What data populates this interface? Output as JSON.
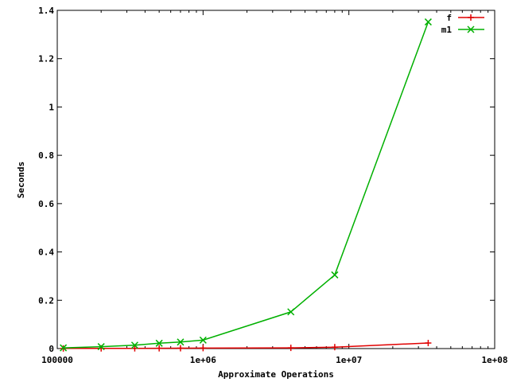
{
  "chart_data": {
    "type": "line",
    "title": "",
    "xlabel": "Approximate Operations",
    "ylabel": "Seconds",
    "xscale": "log",
    "xlim": [
      100000,
      100000000
    ],
    "ylim": [
      0,
      1.4
    ],
    "xticks": [
      {
        "value": 100000,
        "label": "100000"
      },
      {
        "value": 1000000,
        "label": "1e+06"
      },
      {
        "value": 10000000,
        "label": "1e+07"
      },
      {
        "value": 100000000,
        "label": "1e+08"
      }
    ],
    "yticks": [
      {
        "value": 0,
        "label": "0"
      },
      {
        "value": 0.2,
        "label": "0.2"
      },
      {
        "value": 0.4,
        "label": "0.4"
      },
      {
        "value": 0.6,
        "label": "0.6"
      },
      {
        "value": 0.8,
        "label": "0.8"
      },
      {
        "value": 1.0,
        "label": "1"
      },
      {
        "value": 1.2,
        "label": "1.2"
      },
      {
        "value": 1.4,
        "label": "1.4"
      }
    ],
    "grid": false,
    "legend_position": "top-right",
    "series": [
      {
        "name": "f",
        "color": "#e00000",
        "marker": "plus",
        "x": [
          110000,
          200000,
          340000,
          500000,
          700000,
          1000000,
          4000000,
          8000000,
          35000000
        ],
        "y": [
          0.0005,
          0.0008,
          0.001,
          0.0012,
          0.0015,
          0.002,
          0.003,
          0.006,
          0.023
        ]
      },
      {
        "name": "m1",
        "color": "#00b000",
        "marker": "cross",
        "x": [
          110000,
          200000,
          340000,
          500000,
          700000,
          1000000,
          4000000,
          8000000,
          35000000
        ],
        "y": [
          0.003,
          0.008,
          0.014,
          0.022,
          0.027,
          0.035,
          0.152,
          0.305,
          1.352
        ]
      }
    ]
  }
}
